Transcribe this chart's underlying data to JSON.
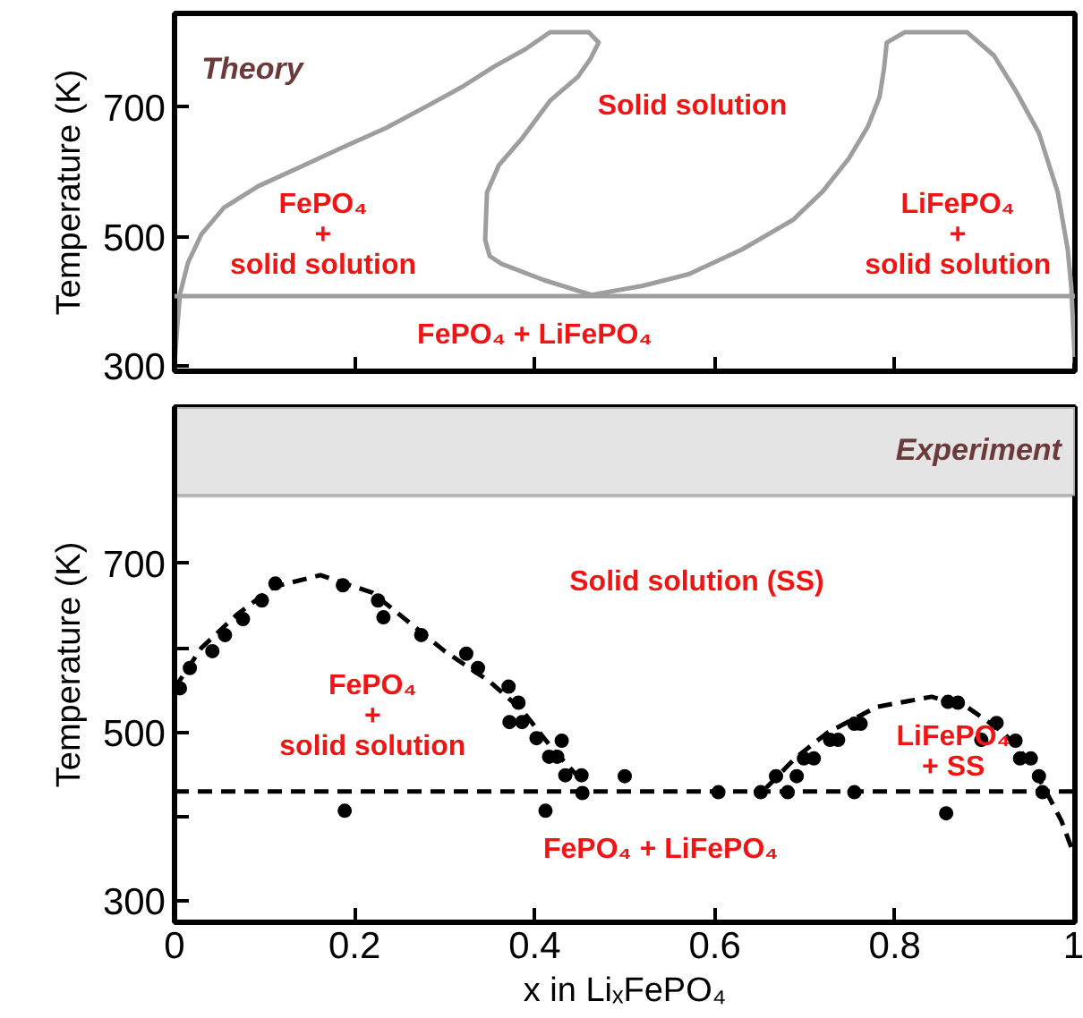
{
  "chart_data": [
    {
      "type": "line",
      "title": "Theory",
      "ylabel": "Temperature (K)",
      "xlim": [
        0,
        1
      ],
      "ylim": [
        292,
        845
      ],
      "xticks": [
        0,
        0.2,
        0.4,
        0.6,
        0.8,
        1
      ],
      "yticks": [
        300,
        500,
        700
      ],
      "tick_labels": "y",
      "series": [
        {
          "color": "#9e9e9e",
          "x": [
            0.0,
            0.003,
            0.006,
            0.015,
            0.03,
            0.055,
            0.093,
            0.14,
            0.185,
            0.235,
            0.278,
            0.32,
            0.355,
            0.39,
            0.417,
            0.46,
            0.471,
            0.462,
            0.448,
            0.417,
            0.386,
            0.36,
            0.347,
            0.345,
            0.35,
            0.363,
            0.41,
            0.463,
            0.52,
            0.571,
            0.63,
            0.687,
            0.72,
            0.749,
            0.77,
            0.783,
            0.788,
            0.791,
            0.811,
            0.88,
            0.91,
            0.934,
            0.96,
            0.981,
            0.992,
            0.996,
            1.0
          ],
          "values": [
            304,
            360,
            411,
            460,
            504,
            545,
            578,
            608,
            637,
            668,
            700,
            732,
            763,
            790,
            816,
            816,
            800,
            775,
            747,
            710,
            652,
            610,
            568,
            495,
            470,
            458,
            433,
            410,
            424,
            442,
            480,
            526,
            570,
            621,
            670,
            716,
            760,
            800,
            816,
            816,
            780,
            726,
            660,
            568,
            480,
            421,
            304
          ]
        }
      ],
      "ref_lines": [
        {
          "axis": "y",
          "value": 408,
          "color": "#9e9e9e",
          "line_style": "solid"
        }
      ],
      "annotations": [
        "Solid solution",
        "FePO₄\n+\nsolid solution",
        "LiFePO₄\n+\nsolid solution",
        "FePO₄ + LiFePO₄"
      ]
    },
    {
      "type": "scatter",
      "xlabel": "x in LiₓFePO₄",
      "ylabel": "Temperature (K)",
      "title": "Experiment",
      "xlim": [
        0,
        1
      ],
      "ylim": [
        275,
        885
      ],
      "xticks": [
        0,
        0.2,
        0.4,
        0.6,
        0.8,
        1
      ],
      "yticks": [
        300,
        {
          "value": 400,
          "label": null
        },
        500,
        {
          "value": 600,
          "label": null
        },
        700
      ],
      "series": [
        {
          "type": "scatter",
          "marker": "circle",
          "color": "#000000",
          "x": [
            0.006,
            0.017,
            0.042,
            0.056,
            0.076,
            0.097,
            0.112,
            0.187,
            0.226,
            0.232,
            0.274,
            0.324,
            0.337,
            0.371,
            0.382,
            0.372,
            0.386,
            0.402,
            0.416,
            0.425,
            0.43,
            0.434,
            0.452,
            0.453,
            0.189,
            0.412,
            0.5,
            0.604,
            0.651,
            0.668,
            0.681,
            0.691,
            0.699,
            0.71,
            0.728,
            0.737,
            0.755,
            0.762,
            0.755,
            0.859,
            0.87,
            0.857,
            0.896,
            0.913,
            0.934,
            0.939,
            0.951,
            0.96,
            0.964
          ],
          "values": [
            552,
            576,
            596,
            615,
            634,
            656,
            676,
            674,
            656,
            636,
            615,
            593,
            576,
            554,
            535,
            512,
            512,
            493,
            471,
            471,
            490,
            449,
            449,
            428,
            407,
            407,
            448,
            429,
            429,
            448,
            429,
            448,
            469,
            469,
            491,
            491,
            510,
            510,
            429,
            536,
            535,
            404,
            491,
            511,
            490,
            469,
            469,
            448,
            429
          ]
        },
        {
          "type": "line",
          "line_style": "dashed",
          "color": "#000000",
          "x": [
            0.0,
            0.03,
            0.069,
            0.11,
            0.162,
            0.22,
            0.3,
            0.35,
            0.386,
            0.42,
            0.452
          ],
          "values": [
            552,
            600,
            639,
            672,
            686,
            665,
            596,
            560,
            526,
            480,
            443
          ]
        },
        {
          "type": "line",
          "line_style": "dashed",
          "color": "#000000",
          "x": [
            0.657,
            0.69,
            0.726,
            0.78,
            0.841,
            0.88,
            0.92,
            0.946,
            0.966,
            0.985,
            1.0
          ],
          "values": [
            434,
            470,
            500,
            530,
            542,
            530,
            500,
            470,
            434,
            395,
            352
          ]
        }
      ],
      "ref_lines": [
        {
          "axis": "y",
          "value": 430,
          "color": "#000000",
          "line_style": "dashed"
        }
      ],
      "bands": [
        {
          "axis": "y",
          "from": 780,
          "to": 885,
          "color": "#e4e4e4"
        }
      ],
      "annotations": [
        "Solid solution (SS)",
        "FePO₄\n+\nsolid solution",
        "LiFePO₄\n+ SS",
        "FePO₄ + LiFePO₄"
      ]
    }
  ]
}
